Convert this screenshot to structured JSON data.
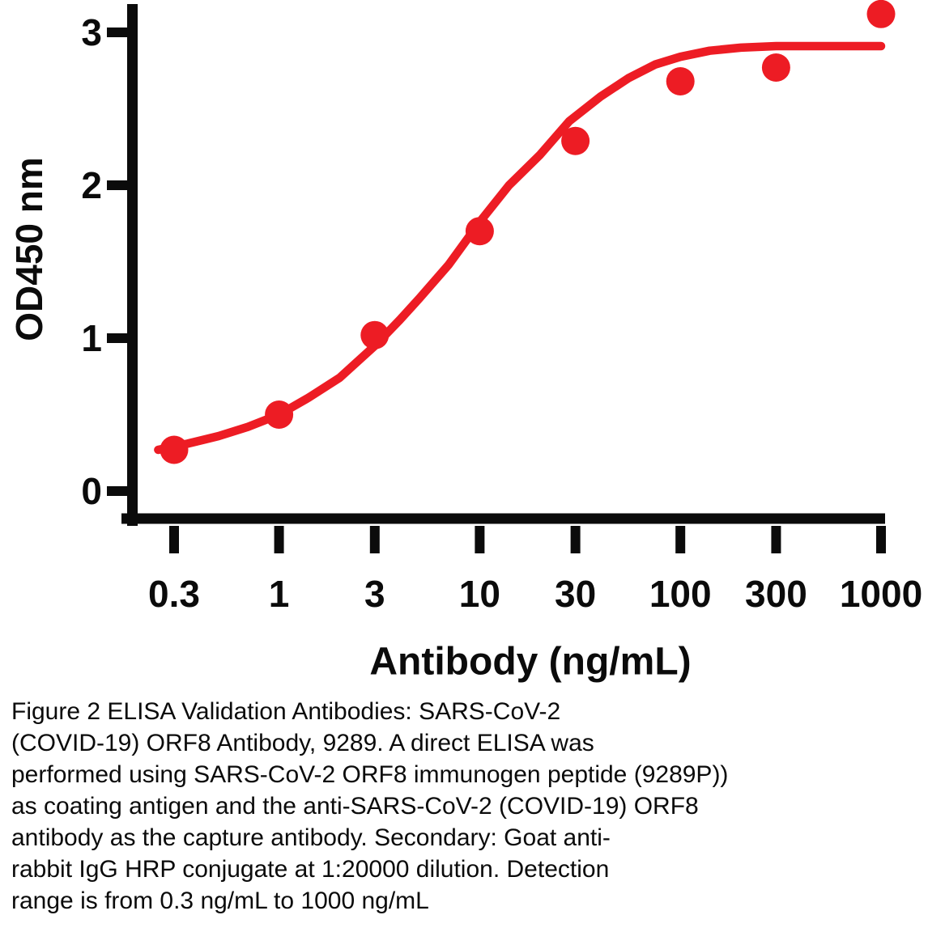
{
  "chart_data": {
    "type": "scatter",
    "title": "",
    "xlabel": "Antibody (ng/mL)",
    "ylabel": "OD450 nm",
    "x_scale": "log",
    "xlim": [
      0.25,
      1000
    ],
    "ylim": [
      0,
      3.2
    ],
    "x_ticks": [
      0.3,
      1,
      3,
      10,
      30,
      100,
      300,
      1000
    ],
    "x_tick_labels": [
      "0.3",
      "1",
      "3",
      "10",
      "30",
      "100",
      "300",
      "1000"
    ],
    "y_ticks": [
      0,
      1,
      2,
      3
    ],
    "y_tick_labels": [
      "0",
      "1",
      "2",
      "3"
    ],
    "grid": false,
    "legend": "none",
    "accent_color": "#ED1C24",
    "axis_color": "#0b0b0b",
    "points": {
      "x": [
        0.3,
        1,
        3,
        10,
        30,
        100,
        300,
        1000
      ],
      "y": [
        0.27,
        0.5,
        1.02,
        1.7,
        2.29,
        2.68,
        2.77,
        3.12
      ]
    },
    "fit_curve": {
      "x": [
        0.25,
        0.35,
        0.5,
        0.7,
        1,
        1.4,
        2,
        3,
        4,
        5,
        7,
        10,
        14,
        20,
        28,
        40,
        55,
        75,
        100,
        140,
        200,
        300,
        500,
        1000
      ],
      "y": [
        0.27,
        0.31,
        0.36,
        0.42,
        0.5,
        0.61,
        0.74,
        0.95,
        1.12,
        1.26,
        1.48,
        1.76,
        2.0,
        2.2,
        2.42,
        2.58,
        2.7,
        2.79,
        2.84,
        2.88,
        2.9,
        2.91,
        2.91,
        2.91
      ]
    }
  },
  "caption": {
    "lines": [
      "Figure 2 ELISA Validation Antibodies: SARS-CoV-2",
      "(COVID-19) ORF8 Antibody, 9289. A direct ELISA was",
      "performed using SARS-CoV-2 ORF8 immunogen peptide (9289P))",
      "as coating antigen and the anti-SARS-CoV-2 (COVID-19) ORF8",
      "antibody as the capture antibody. Secondary: Goat anti-",
      "rabbit IgG HRP conjugate at 1:20000 dilution. Detection",
      "range is from 0.3 ng/mL to 1000 ng/mL"
    ]
  }
}
